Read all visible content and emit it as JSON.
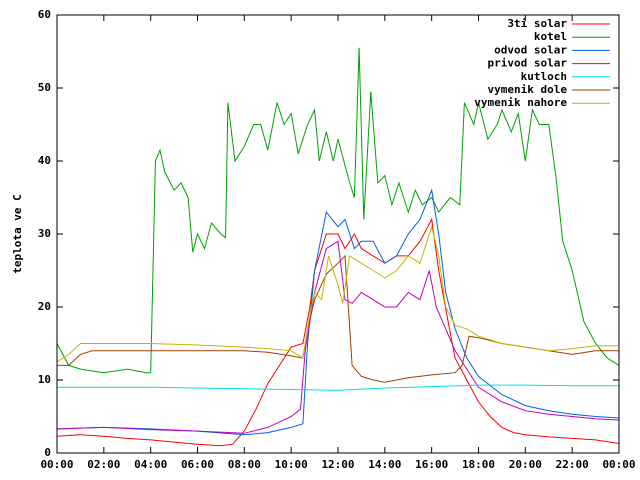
{
  "chart_data": {
    "type": "line",
    "y_label": "teplota ve C",
    "xlim": [
      0,
      24
    ],
    "xticks": [
      {
        "value": 0,
        "label": "00:00"
      },
      {
        "value": 2,
        "label": "02:00"
      },
      {
        "value": 4,
        "label": "04:00"
      },
      {
        "value": 6,
        "label": "06:00"
      },
      {
        "value": 8,
        "label": "08:00"
      },
      {
        "value": 10,
        "label": "10:00"
      },
      {
        "value": 12,
        "label": "12:00"
      },
      {
        "value": 14,
        "label": "14:00"
      },
      {
        "value": 16,
        "label": "16:00"
      },
      {
        "value": 18,
        "label": "18:00"
      },
      {
        "value": 20,
        "label": "20:00"
      },
      {
        "value": 22,
        "label": "22:00"
      },
      {
        "value": 24,
        "label": "00:00"
      }
    ],
    "ylim": [
      0,
      60
    ],
    "yticks": [
      0,
      10,
      20,
      30,
      40,
      50,
      60
    ],
    "legend": "top-right",
    "series": [
      {
        "name": "3ti solar",
        "color": "#ff0000",
        "x": [
          0,
          1,
          2,
          3,
          4,
          5,
          6,
          7,
          7.5,
          8,
          8.5,
          9,
          9.5,
          10,
          10.5,
          10.8,
          11,
          11.5,
          12,
          12.3,
          12.7,
          13,
          13.5,
          14,
          14.5,
          15,
          15.5,
          16,
          16.3,
          16.7,
          17,
          17.5,
          18,
          18.5,
          19,
          19.5,
          20,
          21,
          22,
          23,
          24
        ],
        "values": [
          2.3,
          2.5,
          2.3,
          2,
          1.8,
          1.5,
          1.2,
          1,
          1.2,
          3,
          6,
          9.5,
          12,
          14.5,
          15,
          20,
          25,
          30,
          30,
          28,
          30,
          28,
          27,
          26,
          27,
          27,
          29,
          32,
          25,
          18,
          13,
          10,
          7,
          5,
          3.5,
          2.8,
          2.5,
          2.2,
          2,
          1.8,
          1.3
        ]
      },
      {
        "name": "kotel",
        "color": "#00a000",
        "x": [
          0,
          0.5,
          1,
          2,
          3,
          3.8,
          4,
          4.2,
          4.4,
          4.6,
          5,
          5.3,
          5.6,
          5.8,
          6,
          6.3,
          6.6,
          7,
          7.2,
          7.3,
          7.6,
          8,
          8.4,
          8.7,
          9,
          9.4,
          9.7,
          10,
          10.3,
          10.7,
          11,
          11.2,
          11.5,
          11.8,
          12,
          12.5,
          12.7,
          12.9,
          13.1,
          13.4,
          13.7,
          14,
          14.3,
          14.6,
          15,
          15.3,
          15.6,
          16,
          16.3,
          16.8,
          17.2,
          17.4,
          17.8,
          18,
          18.4,
          18.8,
          19,
          19.4,
          19.7,
          20,
          20.3,
          20.6,
          21,
          21.3,
          21.6,
          22,
          22.5,
          23,
          23.5,
          24
        ],
        "values": [
          15,
          12,
          11.5,
          11,
          11.5,
          11,
          11,
          40,
          41.5,
          38.5,
          36,
          37,
          35,
          27.5,
          30,
          28,
          31.5,
          30,
          29.5,
          48,
          40,
          42,
          45,
          45,
          41.5,
          48,
          45,
          46.5,
          41,
          45,
          47,
          40,
          44,
          40,
          43,
          37,
          35,
          55.5,
          32,
          49.5,
          37,
          38,
          34,
          37,
          33,
          36,
          34,
          35,
          33,
          35,
          34,
          48,
          45,
          48,
          43,
          45,
          47,
          44,
          46.5,
          40,
          47,
          45,
          45,
          38,
          29,
          25,
          18,
          15,
          13,
          12
        ]
      },
      {
        "name": "odvod solar",
        "color": "#0060e0",
        "x": [
          0,
          2,
          4,
          6,
          8,
          9,
          10,
          10.5,
          10.7,
          11,
          11.5,
          12,
          12.3,
          12.7,
          13,
          13.5,
          14,
          14.5,
          15,
          15.5,
          16,
          16.3,
          16.6,
          17,
          17.5,
          18,
          19,
          20,
          21,
          22,
          23,
          24
        ],
        "values": [
          3.3,
          3.5,
          3.3,
          3,
          2.5,
          2.8,
          3.5,
          4,
          15,
          25,
          33,
          31,
          32,
          28,
          29,
          29,
          26,
          27,
          30,
          32,
          36,
          30,
          22,
          17,
          13,
          10.5,
          8,
          6.5,
          5.8,
          5.3,
          5,
          4.8
        ]
      },
      {
        "name": "privod solar",
        "color": "#c000c0",
        "x": [
          0,
          2,
          4,
          6,
          8,
          9,
          10,
          10.4,
          10.6,
          11,
          11.5,
          12,
          12.3,
          12.6,
          13,
          13.5,
          14,
          14.5,
          15,
          15.5,
          15.9,
          16.2,
          16.6,
          17,
          17.5,
          18,
          19,
          20,
          21,
          22,
          23,
          24
        ],
        "values": [
          3.3,
          3.5,
          3.2,
          3,
          2.7,
          3.5,
          5,
          6,
          14,
          22,
          28,
          29,
          21,
          20.5,
          22,
          21,
          20,
          20,
          22,
          21,
          25,
          20,
          17,
          14,
          11.5,
          9,
          7,
          5.8,
          5.3,
          5,
          4.7,
          4.5
        ]
      },
      {
        "name": "kutloch",
        "color": "#00e0e0",
        "x": [
          0,
          4,
          8,
          10,
          12,
          14,
          16,
          18,
          20,
          22,
          24
        ],
        "values": [
          9,
          9,
          8.8,
          8.7,
          8.6,
          8.9,
          9.1,
          9.3,
          9.3,
          9.2,
          9.2
        ]
      },
      {
        "name": "vymenik dole",
        "color": "#a04000",
        "x": [
          0,
          0.5,
          1,
          1.5,
          3,
          5,
          7,
          8,
          9,
          10,
          10.5,
          10.7,
          11,
          11.5,
          12,
          12.3,
          12.4,
          12.6,
          13,
          13.5,
          14,
          14.5,
          15,
          16,
          17,
          17.3,
          17.6,
          18,
          19,
          20,
          21,
          22,
          23,
          24
        ],
        "values": [
          12,
          12,
          13.5,
          14,
          14,
          14,
          14,
          14,
          13.8,
          13.3,
          13,
          17,
          21,
          24.5,
          26,
          27,
          22,
          12,
          10.5,
          10,
          9.7,
          10,
          10.3,
          10.7,
          11,
          12,
          16,
          15.8,
          15,
          14.5,
          14,
          13.5,
          14,
          14
        ]
      },
      {
        "name": "vymenik nahore",
        "color": "#c8b400",
        "x": [
          0,
          0.5,
          1,
          2,
          4,
          6,
          8,
          9,
          10,
          10.5,
          10.8,
          11,
          11.3,
          11.6,
          12,
          12.2,
          12.5,
          13,
          13.5,
          14,
          14.5,
          15,
          15.5,
          16,
          16.3,
          16.6,
          17,
          17.5,
          18,
          19,
          20,
          21,
          22,
          23,
          24
        ],
        "values": [
          12.5,
          13.5,
          15,
          15,
          15,
          14.8,
          14.5,
          14.3,
          14,
          13,
          19,
          22,
          21,
          27,
          23,
          20.5,
          27,
          26,
          25,
          24,
          25,
          27,
          26,
          31,
          27,
          20,
          17.5,
          17,
          16,
          15,
          14.5,
          14,
          14.3,
          14.7,
          14.7
        ]
      }
    ]
  }
}
